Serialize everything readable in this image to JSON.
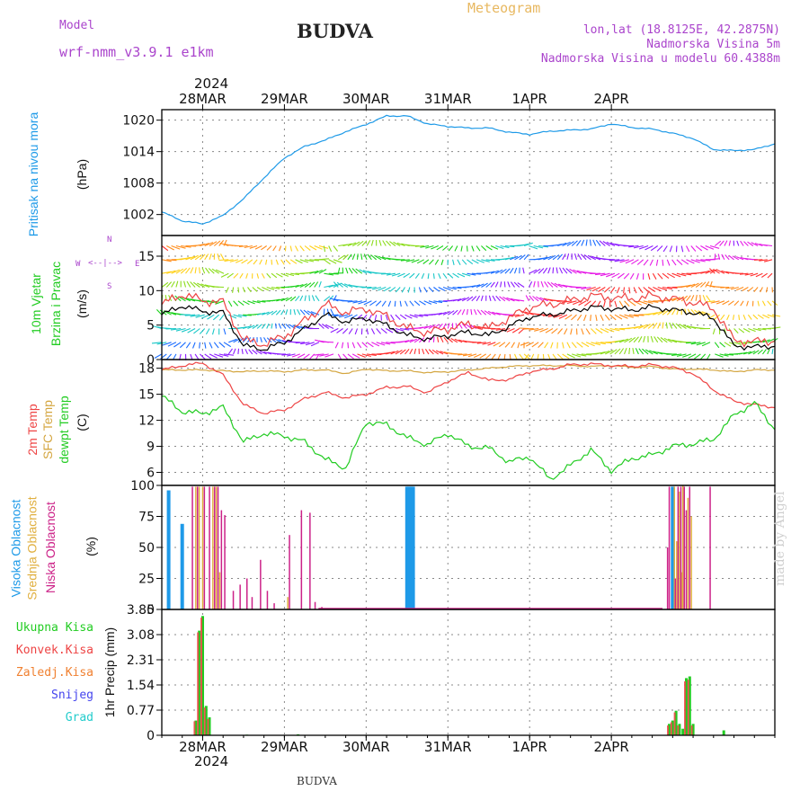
{
  "header": {
    "model_label": "Model",
    "model_name": "wrf-nmm_v3.9.1 e1km",
    "title": "BUDVA",
    "meteogram": "Meteogram",
    "lonlat": "lon,lat (18.8125E, 42.2875N)",
    "elevation": "Nadmorska Visina 5m",
    "model_elevation": "Nadmorska Visina u modelu 60.4388m"
  },
  "footer": {
    "station": "BUDVA",
    "credit": "made by Angel"
  },
  "colors": {
    "pressure": "#1e9ae8",
    "wind_label": "#22cc22",
    "wind_dir_label": "#aa44cc",
    "temp2m": "#ee4444",
    "sfc_temp": "#d4a640",
    "dewpt": "#22cc22",
    "high_cloud": "#1e9ae8",
    "mid_cloud": "#e0b040",
    "low_cloud": "#cc2288",
    "total_precip": "#22cc22",
    "conv_precip": "#ee4444",
    "frozen_precip": "#f08030",
    "snow": "#4444ee",
    "hail": "#22cccc"
  },
  "x_axis": {
    "top_year": "2024",
    "bottom_year": "2024",
    "ticks": [
      "28MAR",
      "29MAR",
      "30MAR",
      "31MAR",
      "1APR",
      "2APR"
    ]
  },
  "panels": {
    "pressure": {
      "label": "Pritisak na nivou mora",
      "unit": "(hPa)",
      "ticks": [
        "1002",
        "1008",
        "1014",
        "1020"
      ]
    },
    "wind": {
      "label1": "10m Vjetar",
      "label2": "Brzina i Pravac",
      "unit": "(m/s)",
      "ticks": [
        "0",
        "5",
        "10",
        "15"
      ],
      "compass": {
        "n": "N",
        "s": "S",
        "w": "W",
        "e": "E"
      }
    },
    "temp": {
      "label1": "2m Temp",
      "label2": "SFC Temp",
      "label3": "dewpt Temp",
      "unit": "(C)",
      "ticks": [
        "6",
        "9",
        "12",
        "15",
        "18"
      ]
    },
    "cloud": {
      "label1": "Visoka Oblacnost",
      "label2": "Srednja Oblacnost",
      "label3": "Niska Oblacnost",
      "unit": "(%)",
      "ticks": [
        "0",
        "25",
        "50",
        "75",
        "100"
      ]
    },
    "precip": {
      "unit": "1hr Precip (mm)",
      "ticks": [
        "0",
        "0.77",
        "1.54",
        "2.31",
        "3.08",
        "3.85"
      ],
      "legend": [
        "Ukupna Kisa",
        "Konvek.Kisa",
        "Zaledj.Kisa",
        "Snijeg",
        "Grad"
      ]
    }
  },
  "chart_data": [
    {
      "type": "line",
      "title": "Pritisak na nivou mora",
      "ylabel": "(hPa)",
      "ylim": [
        998,
        1022
      ],
      "x_hours": [
        0,
        6,
        12,
        18,
        24,
        30,
        36,
        42,
        48,
        54,
        60,
        66,
        72,
        78,
        84,
        90,
        96,
        102,
        108,
        114,
        120,
        126,
        132,
        138,
        144,
        150,
        156,
        162,
        168,
        174,
        180
      ],
      "series": [
        {
          "values": [
            1002.5,
            1000.8,
            1000.2,
            1001.8,
            1005,
            1009,
            1012.8,
            1015,
            1016.2,
            1017.8,
            1019.2,
            1020.8,
            1020.8,
            1019.3,
            1018.8,
            1018.5,
            1018.5,
            1017.7,
            1017.3,
            1017.9,
            1018.1,
            1018.3,
            1019.3,
            1018.6,
            1018.3,
            1017.5,
            1016.5,
            1014.4,
            1014.2,
            1014.4,
            1015.5
          ]
        }
      ]
    },
    {
      "type": "line",
      "title": "10m Vjetar Brzina i Pravac",
      "ylabel": "(m/s)",
      "ylim": [
        0,
        18
      ],
      "x_hours": [
        0,
        6,
        12,
        18,
        24,
        30,
        36,
        42,
        48,
        54,
        60,
        66,
        72,
        78,
        84,
        90,
        96,
        102,
        108,
        114,
        120,
        126,
        132,
        138,
        144,
        150,
        156,
        162,
        168,
        174,
        180
      ],
      "series": [
        {
          "values": [
            6.5,
            7.8,
            7,
            6.8,
            2,
            1.5,
            2.5,
            4.5,
            6.5,
            5.5,
            6,
            5,
            3.5,
            3,
            3.5,
            4,
            3.5,
            4.8,
            6.2,
            6.5,
            7,
            7.6,
            7.4,
            7.2,
            7.6,
            7.2,
            6.8,
            6,
            2,
            1.8,
            2
          ]
        }
      ]
    },
    {
      "type": "line",
      "title": "2m Temp / SFC Temp / dewpt Temp",
      "ylabel": "(C)",
      "ylim": [
        4.5,
        19
      ],
      "x_hours": [
        0,
        6,
        12,
        18,
        24,
        30,
        36,
        42,
        48,
        54,
        60,
        66,
        72,
        78,
        84,
        90,
        96,
        102,
        108,
        114,
        120,
        126,
        132,
        138,
        144,
        150,
        156,
        162,
        168,
        174,
        180
      ],
      "series": [
        {
          "name": "2m Temp",
          "values": [
            17.8,
            18.3,
            18.6,
            17.2,
            13.8,
            12.8,
            13.2,
            14.5,
            15.2,
            14.6,
            15,
            15.8,
            15.9,
            15.2,
            16.5,
            17.5,
            16.6,
            16.7,
            17.6,
            17.9,
            18.4,
            18.5,
            18.3,
            18.2,
            18.4,
            18.1,
            17.4,
            15.5,
            14.2,
            13.8,
            13.5
          ]
        },
        {
          "name": "SFC Temp",
          "values": [
            17.8,
            17.8,
            17.8,
            17.7,
            17.6,
            17.7,
            17.6,
            17.8,
            17.8,
            17.4,
            17.9,
            17.7,
            17.7,
            17.5,
            17.6,
            17.8,
            18,
            18.2,
            18.3,
            18.3,
            18.3,
            18.2,
            18.3,
            18.1,
            18.2,
            17.9,
            17.9,
            17.8,
            17.6,
            17.8,
            17.8
          ]
        },
        {
          "name": "dewpt Temp",
          "values": [
            14.8,
            13,
            12.8,
            13.5,
            9.5,
            10.5,
            10.2,
            9.5,
            7.5,
            6.5,
            11.8,
            11.5,
            10,
            9.2,
            10.5,
            9,
            8.8,
            7.2,
            7.8,
            5.2,
            6.8,
            8.6,
            6.2,
            7.6,
            8,
            9,
            9.3,
            9.8,
            12.6,
            14,
            11
          ]
        }
      ]
    },
    {
      "type": "bar",
      "title": "Visoka / Srednja / Niska Oblacnost",
      "ylabel": "(%)",
      "ylim": [
        0,
        100
      ],
      "series": [
        {
          "name": "Visoka Oblacnost",
          "x_hours": [
            2,
            6,
            72,
            72.6,
            73.2,
            73.8,
            150
          ],
          "values": [
            96,
            69,
            99,
            99,
            99,
            99,
            99
          ]
        },
        {
          "name": "Srednja Oblacnost",
          "x_hours": [
            10,
            11,
            12,
            15,
            16,
            17,
            37,
            150.5,
            151.2,
            152,
            152.6,
            153,
            154.5,
            155.5
          ],
          "values": [
            99,
            99,
            99,
            99,
            99,
            30,
            10,
            99,
            55,
            95,
            30,
            100,
            90,
            75
          ]
        },
        {
          "name": "Niska Oblacnost",
          "x_hours": [
            9,
            10.5,
            12.5,
            14,
            15.5,
            16.5,
            17.5,
            18.5,
            21,
            23,
            25,
            26.5,
            29,
            31,
            33,
            37.5,
            41,
            43.5,
            45,
            47,
            148.5,
            149,
            150.8,
            151.6,
            152.4,
            153.4,
            154,
            155,
            161
          ],
          "values": [
            99,
            99,
            99,
            99,
            99,
            99,
            80,
            76,
            15,
            20,
            25,
            10,
            40,
            15,
            5,
            60,
            80,
            78,
            6,
            2,
            50,
            99,
            25,
            99,
            99,
            99,
            80,
            99,
            99
          ]
        }
      ]
    },
    {
      "type": "bar",
      "title": "1hr Precip",
      "ylabel": "1hr Precip (mm)",
      "ylim": [
        0,
        3.85
      ],
      "series": [
        {
          "name": "Ukupna Kisa",
          "x_hours": [
            10,
            11,
            12,
            13,
            14,
            25,
            40,
            149,
            150,
            151,
            152,
            153,
            154,
            155,
            156,
            165
          ],
          "values": [
            0.45,
            3.2,
            3.65,
            0.9,
            0.55,
            0.02,
            0.03,
            0.35,
            0.45,
            0.75,
            0.35,
            0.2,
            1.75,
            1.8,
            0.35,
            0.15
          ]
        },
        {
          "name": "Konvek.Kisa",
          "x_hours": [
            10,
            11,
            12,
            13,
            14,
            149,
            150,
            151,
            152,
            154,
            155,
            156
          ],
          "values": [
            0.43,
            3.15,
            3.6,
            0.85,
            0.5,
            0.3,
            0.4,
            0.7,
            0.3,
            1.65,
            1.7,
            0.3
          ]
        }
      ]
    }
  ]
}
